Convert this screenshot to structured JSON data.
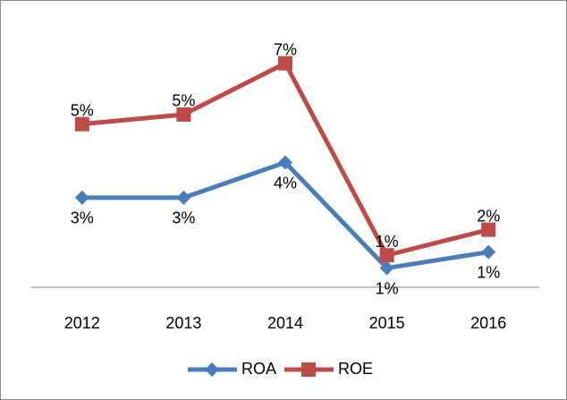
{
  "chart_data": {
    "type": "line",
    "categories": [
      "2012",
      "2013",
      "2014",
      "2015",
      "2016"
    ],
    "series": [
      {
        "name": "ROA",
        "color": "#4a7ebb",
        "marker": "diamond",
        "values": [
          2.8,
          2.8,
          3.9,
          0.6,
          1.1
        ],
        "value_labels": [
          "3%",
          "3%",
          "4%",
          "1%",
          "1%"
        ],
        "label_position": "below"
      },
      {
        "name": "ROE",
        "color": "#be4b48",
        "marker": "square",
        "values": [
          5.1,
          5.4,
          7.0,
          1.0,
          1.8
        ],
        "value_labels": [
          "5%",
          "5%",
          "7%",
          "1%",
          "2%"
        ],
        "label_position": "above"
      }
    ],
    "ylim": [
      0,
      8
    ],
    "grid": false,
    "legend": "bottom"
  }
}
